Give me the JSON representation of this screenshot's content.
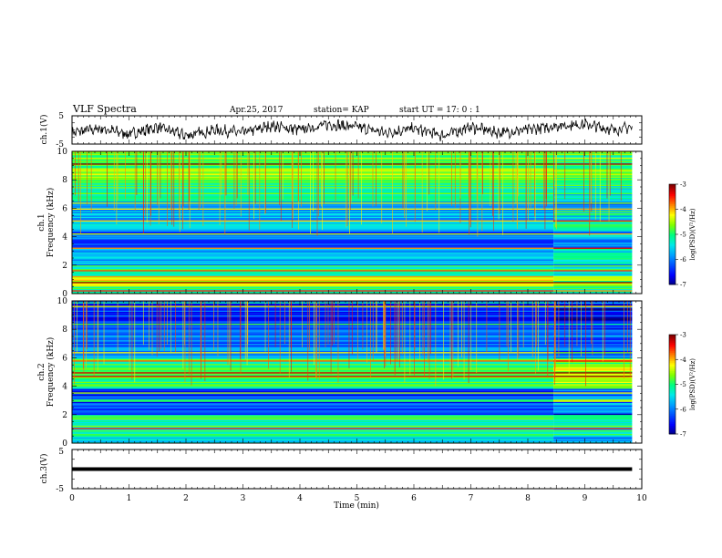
{
  "header": {
    "title": "VLF Spectra",
    "date": "Apr.25, 2017",
    "station": "station= KAP",
    "start": "start  UT =   17: 0  : 1"
  },
  "colors": {
    "colormap": [
      "#000080",
      "#0000ff",
      "#0050ff",
      "#00a0ff",
      "#00e8e8",
      "#00ff80",
      "#80ff00",
      "#ffff00",
      "#ff8000",
      "#ff0000",
      "#800000"
    ],
    "trace": "#000000"
  },
  "chart_data": [
    {
      "type": "line",
      "name": "ch1-waveform",
      "ylabel": "ch.1(V)",
      "ylim": [
        -5,
        5
      ],
      "ytick_labels": [
        "5",
        "-5"
      ],
      "x": [
        0,
        0.5,
        1,
        1.5,
        2,
        2.5,
        3,
        3.5,
        4,
        4.5,
        5,
        5.5,
        6,
        6.5,
        7,
        7.5,
        8,
        8.5,
        9,
        9.5,
        9.83
      ],
      "y": [
        -1,
        0.5,
        -1.5,
        1,
        -2,
        0,
        -1,
        1.5,
        0,
        2,
        1,
        -1,
        0.5,
        -2,
        1,
        -1,
        0,
        1.5,
        2,
        0,
        1
      ]
    },
    {
      "type": "heatmap",
      "name": "ch1-spectrogram",
      "ylabel": "ch.1",
      "ylabel2": "Frequency (kHz)",
      "ylim": [
        0,
        10
      ],
      "yticks": [
        0,
        2,
        4,
        6,
        8,
        10
      ],
      "ytick_labels": [
        "0",
        "2",
        "4",
        "6",
        "8",
        "10"
      ],
      "xlim": [
        0,
        9.83
      ],
      "colorbar": {
        "label": "log(PSD)(V²/Hz)",
        "range": [
          -7,
          -3
        ],
        "ticks": [
          "-3",
          "-4",
          "-5",
          "-6",
          "-7"
        ]
      },
      "bands": [
        {
          "f0": 0.0,
          "f1": 0.5,
          "level": -4.8
        },
        {
          "f0": 0.5,
          "f1": 1.2,
          "level": -4.3
        },
        {
          "f0": 1.2,
          "f1": 2.0,
          "level": -5.0
        },
        {
          "f0": 2.0,
          "f1": 3.2,
          "level": -5.7
        },
        {
          "f0": 3.2,
          "f1": 4.5,
          "level": -6.2
        },
        {
          "f0": 4.5,
          "f1": 5.5,
          "level": -5.6
        },
        {
          "f0": 5.5,
          "f1": 6.5,
          "level": -5.8
        },
        {
          "f0": 6.5,
          "f1": 8.0,
          "level": -5.0
        },
        {
          "f0": 8.0,
          "f1": 10.0,
          "level": -4.7
        }
      ]
    },
    {
      "type": "heatmap",
      "name": "ch2-spectrogram",
      "ylabel": "ch.2",
      "ylabel2": "Frequency (kHz)",
      "ylim": [
        0,
        10
      ],
      "yticks": [
        0,
        2,
        4,
        6,
        8,
        10
      ],
      "ytick_labels": [
        "0",
        "2",
        "4",
        "6",
        "8",
        "10"
      ],
      "xlim": [
        0,
        9.83
      ],
      "colorbar": {
        "label": "log(PSD)(V²/Hz)",
        "range": [
          -7,
          -3
        ],
        "ticks": [
          "-3",
          "-4",
          "-5",
          "-6",
          "-7"
        ]
      },
      "bands": [
        {
          "f0": 0.0,
          "f1": 0.5,
          "level": -5.3
        },
        {
          "f0": 0.5,
          "f1": 2.0,
          "level": -5.0
        },
        {
          "f0": 2.0,
          "f1": 3.8,
          "level": -6.3
        },
        {
          "f0": 3.8,
          "f1": 6.0,
          "level": -5.0
        },
        {
          "f0": 6.0,
          "f1": 8.5,
          "level": -6.0
        },
        {
          "f0": 8.5,
          "f1": 10.0,
          "level": -6.3
        }
      ]
    },
    {
      "type": "line",
      "name": "ch3-waveform",
      "ylabel": "ch.3(V)",
      "ylim": [
        -5,
        5
      ],
      "ytick_labels": [
        "5",
        "-5"
      ],
      "x": [
        0,
        9.83
      ],
      "y": [
        0,
        0
      ]
    }
  ],
  "xaxis": {
    "label": "Time  (min)",
    "ticks": [
      "0",
      "1",
      "2",
      "3",
      "4",
      "5",
      "6",
      "7",
      "8",
      "9",
      "10"
    ],
    "range": [
      0,
      10
    ]
  }
}
